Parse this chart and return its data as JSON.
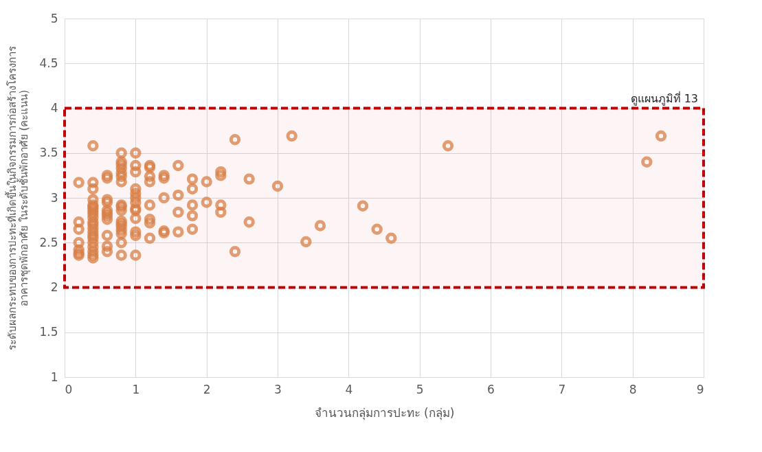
{
  "chart_data": {
    "type": "scatter",
    "xlabel": "จำนวนกลุ่มการปะทะ (กลุ่ม)",
    "ylabel": [
      "ระดับผลกระทบของการปะทะที่เกิดขึ้นในกิจกรรมการก่อสร้างโครงการ",
      "อาคารชุดพักอาศัย ในระดับชั้นพักอาศัย (คะแนน)"
    ],
    "xlim": [
      0,
      9
    ],
    "xticks": [
      0,
      1,
      2,
      3,
      4,
      5,
      6,
      7,
      8,
      9
    ],
    "ylim": [
      1,
      5
    ],
    "yticks": [
      1,
      1.5,
      2,
      2.5,
      3,
      3.5,
      4,
      4.5,
      5
    ],
    "grid": true,
    "marker": "circle",
    "legend": false,
    "bands": [
      {
        "axis": "y",
        "from": 2,
        "to": 4,
        "label": "ดูแผนภูมิที่ 13",
        "color": "#c00000"
      }
    ],
    "series": [
      {
        "color": "#d9854a",
        "x": [
          0.2,
          0.2,
          0.2,
          0.2,
          0.2,
          0.2,
          0.2,
          0.4,
          0.4,
          0.4,
          0.4,
          0.4,
          0.4,
          0.4,
          0.4,
          0.4,
          0.4,
          0.4,
          0.4,
          0.4,
          0.4,
          0.4,
          0.4,
          0.4,
          0.4,
          0.4,
          0.4,
          0.4,
          0.6,
          0.6,
          0.6,
          0.6,
          0.6,
          0.6,
          0.6,
          0.6,
          0.6,
          0.6,
          0.6,
          0.8,
          0.8,
          0.8,
          0.8,
          0.8,
          0.8,
          0.8,
          0.8,
          0.8,
          0.8,
          0.8,
          0.8,
          0.8,
          0.8,
          0.8,
          0.8,
          0.8,
          1,
          1,
          1,
          1,
          1,
          1,
          1,
          1,
          1,
          1,
          1,
          1,
          1,
          1.2,
          1.2,
          1.2,
          1.2,
          1.2,
          1.2,
          1.2,
          1.2,
          1.4,
          1.4,
          1.4,
          1.4,
          1.4,
          1.6,
          1.6,
          1.6,
          1.6,
          1.8,
          1.8,
          1.8,
          1.8,
          1.8,
          2,
          2,
          2.2,
          2.2,
          2.2,
          2.2,
          2.4,
          2.4,
          2.6,
          2.6,
          3,
          3.2,
          3.4,
          3.6,
          4.2,
          4.4,
          4.6,
          5.4,
          8.2,
          8.4
        ],
        "values": [
          3.17,
          2.73,
          2.65,
          2.5,
          2.42,
          2.38,
          2.36,
          3.58,
          3.17,
          3.1,
          2.98,
          2.92,
          2.9,
          2.88,
          2.85,
          2.82,
          2.78,
          2.73,
          2.7,
          2.66,
          2.62,
          2.58,
          2.55,
          2.5,
          2.45,
          2.4,
          2.36,
          2.33,
          3.25,
          3.22,
          2.98,
          2.95,
          2.86,
          2.83,
          2.8,
          2.76,
          2.58,
          2.46,
          2.4,
          3.5,
          3.4,
          3.37,
          3.33,
          3.28,
          3.24,
          3.18,
          2.92,
          2.9,
          2.86,
          2.74,
          2.71,
          2.68,
          2.64,
          2.6,
          2.5,
          2.36,
          3.5,
          3.36,
          3.29,
          3.1,
          3.05,
          3.0,
          2.95,
          2.88,
          2.86,
          2.77,
          2.62,
          2.58,
          2.36,
          3.36,
          3.34,
          3.24,
          3.18,
          2.92,
          2.76,
          2.72,
          2.55,
          3.25,
          3.22,
          3.0,
          2.63,
          2.61,
          3.36,
          3.03,
          2.84,
          2.62,
          3.21,
          3.1,
          2.92,
          2.8,
          2.65,
          3.18,
          2.95,
          3.29,
          3.25,
          2.92,
          2.84,
          3.65,
          2.4,
          3.21,
          2.73,
          3.13,
          3.69,
          2.51,
          2.69,
          2.91,
          2.65,
          2.55,
          3.58,
          3.4,
          3.69
        ]
      }
    ]
  }
}
